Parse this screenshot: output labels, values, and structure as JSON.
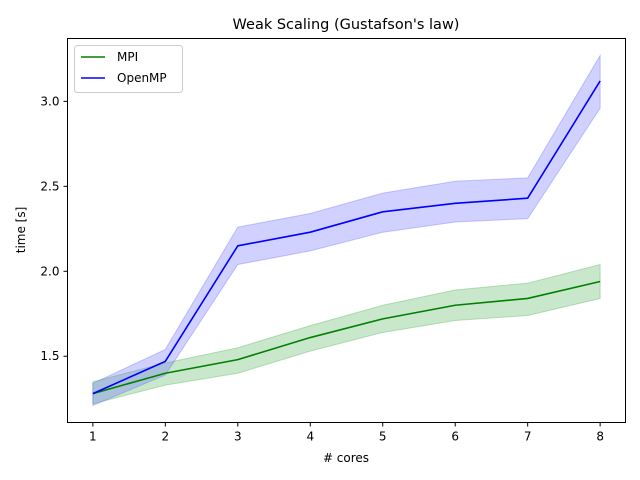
{
  "chart_data": {
    "type": "line",
    "title": "Weak Scaling (Gustafson's law)",
    "xlabel": "# cores",
    "ylabel": "time [s]",
    "x": [
      1,
      2,
      3,
      4,
      5,
      6,
      7,
      8
    ],
    "xlim": [
      0.65,
      8.35
    ],
    "ylim": [
      1.11,
      3.37
    ],
    "xticks": [
      1,
      2,
      3,
      4,
      5,
      6,
      7,
      8
    ],
    "yticks": [
      1.5,
      2.0,
      2.5,
      3.0
    ],
    "ytick_labels": [
      "1.5",
      "2.0",
      "2.5",
      "3.0"
    ],
    "legend_position": "top-left",
    "grid": false,
    "series": [
      {
        "name": "MPI",
        "color": "#008000",
        "band_color": "#4caf50",
        "values": [
          1.28,
          1.4,
          1.48,
          1.61,
          1.72,
          1.8,
          1.84,
          1.94
        ],
        "lower": [
          1.22,
          1.33,
          1.4,
          1.53,
          1.64,
          1.71,
          1.74,
          1.84
        ],
        "upper": [
          1.35,
          1.46,
          1.55,
          1.68,
          1.8,
          1.89,
          1.93,
          2.04
        ]
      },
      {
        "name": "OpenMP",
        "color": "#0000ff",
        "band_color": "#6666ff",
        "values": [
          1.28,
          1.47,
          2.15,
          2.23,
          2.35,
          2.4,
          2.43,
          3.12
        ],
        "lower": [
          1.21,
          1.39,
          2.04,
          2.12,
          2.23,
          2.29,
          2.31,
          2.96
        ],
        "upper": [
          1.34,
          1.54,
          2.26,
          2.34,
          2.46,
          2.53,
          2.55,
          3.27
        ]
      }
    ]
  }
}
